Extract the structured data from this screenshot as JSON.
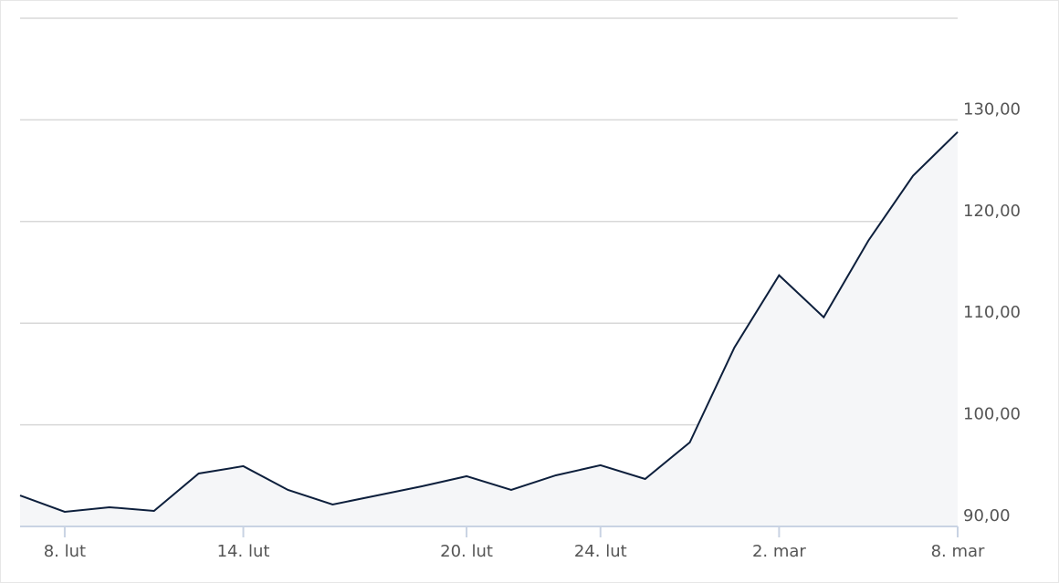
{
  "chart_data": {
    "type": "line",
    "categories": [
      null,
      "8. lut",
      null,
      null,
      null,
      "14. lut",
      null,
      null,
      null,
      null,
      "20. lut",
      null,
      null,
      "24. lut",
      null,
      null,
      null,
      "2. mar",
      null,
      null,
      null,
      "8. mar"
    ],
    "series": [
      {
        "color": "#0d1f3c",
        "values": [
          93.05,
          91.44,
          91.89,
          91.53,
          95.21,
          95.93,
          93.59,
          92.16,
          93.05,
          93.95,
          94.94,
          93.59,
          95.03,
          96.02,
          94.67,
          98.27,
          107.61,
          114.71,
          110.58,
          118.12,
          124.5,
          128.81
        ]
      }
    ],
    "ylim": [
      90,
      140
    ],
    "yticks": [
      {
        "value": 90,
        "label": "90,00"
      },
      {
        "value": 100,
        "label": "100,00"
      },
      {
        "value": 110,
        "label": "110,00"
      },
      {
        "value": 120,
        "label": "120,00"
      },
      {
        "value": 130,
        "label": "130,00"
      }
    ],
    "grid": true,
    "area_color": "#f5f6f8"
  }
}
